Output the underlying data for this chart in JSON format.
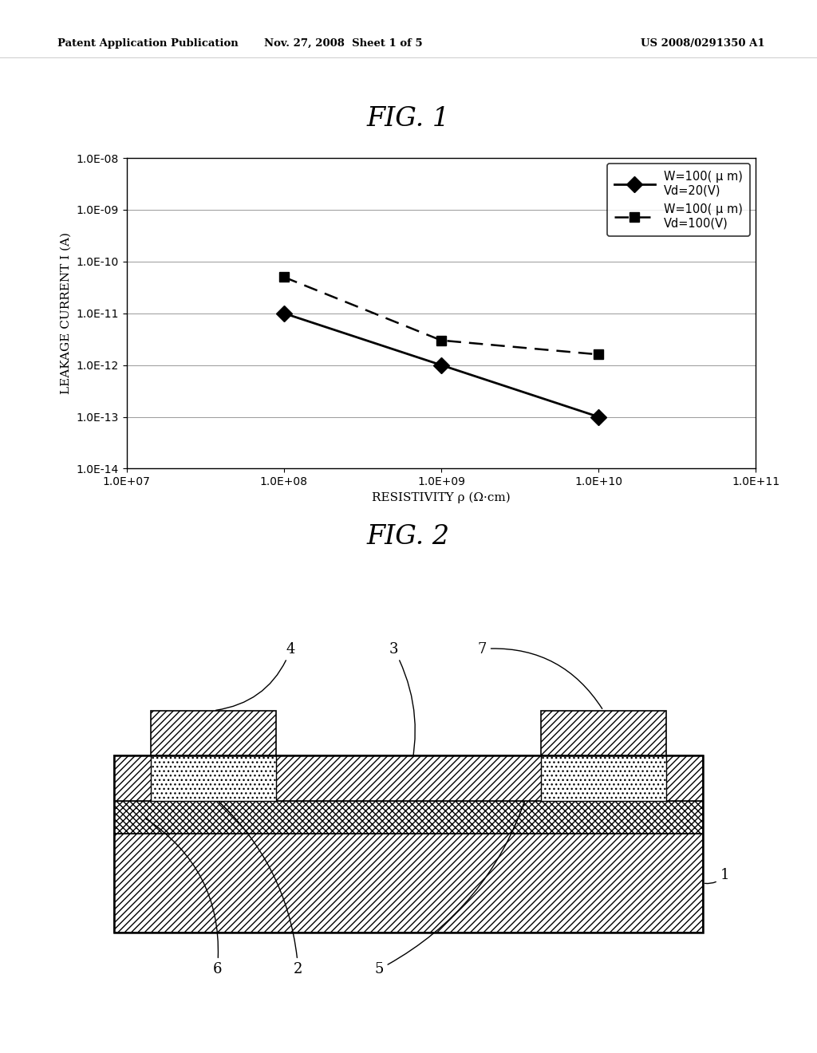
{
  "fig1_title": "FIG. 1",
  "fig2_title": "FIG. 2",
  "header_left": "Patent Application Publication",
  "header_mid": "Nov. 27, 2008  Sheet 1 of 5",
  "header_right": "US 2008/0291350 A1",
  "series1_x": [
    100000000.0,
    1000000000.0,
    10000000000.0
  ],
  "series1_y": [
    1e-11,
    1e-12,
    1e-13
  ],
  "series1_label": "W=100( μ m)\nVd=20(V)",
  "series2_x": [
    100000000.0,
    1000000000.0,
    10000000000.0
  ],
  "series2_y": [
    5e-11,
    3e-12,
    1.6e-12
  ],
  "series2_label": "W=100( μ m)\nVd=100(V)",
  "xlabel": "RESISTIVITY ρ (Ω·cm)",
  "ylabel": "LEAKAGE CURRENT I (A)",
  "xmin": 10000000.0,
  "xmax": 100000000000.0,
  "ymin": 1e-14,
  "ymax": 1e-08,
  "yticks": [
    1e-14,
    1e-13,
    1e-12,
    1e-11,
    1e-10,
    1e-09,
    1e-08
  ],
  "xticks": [
    10000000.0,
    100000000.0,
    1000000000.0,
    10000000000.0,
    100000000000.0
  ],
  "bg_color": "#ffffff",
  "line_color": "#000000"
}
